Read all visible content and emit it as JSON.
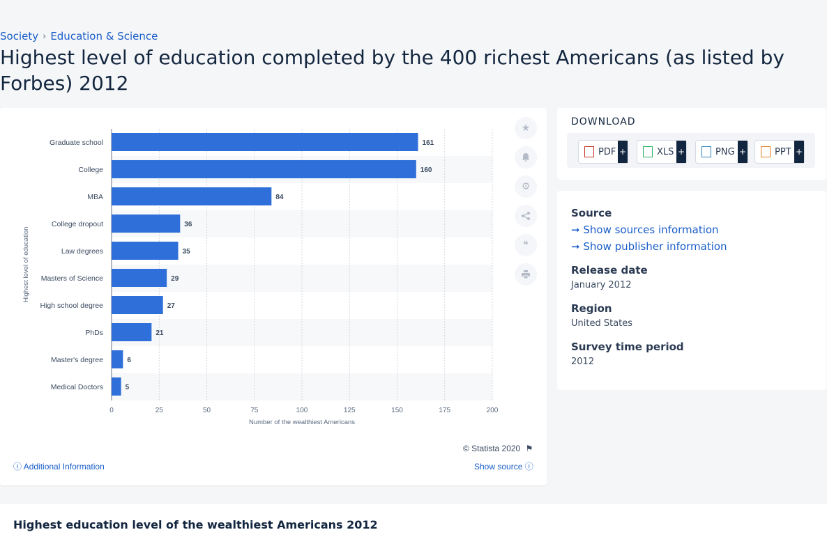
{
  "breadcrumb": {
    "item1": "Society",
    "sep": "›",
    "item2": "Education & Science"
  },
  "page_title": "Highest level of education completed by the 400 richest Americans (as listed by Forbes) 2012",
  "chart_data": {
    "type": "bar",
    "orientation": "horizontal",
    "categories": [
      "Graduate school",
      "College",
      "MBA",
      "College dropout",
      "Law degrees",
      "Masters of Science",
      "High school degree",
      "PhDs",
      "Master's degree",
      "Medical Doctors"
    ],
    "values": [
      161,
      160,
      84,
      36,
      35,
      29,
      27,
      21,
      6,
      5
    ],
    "xlabel": "Number of the wealthiest Americans",
    "ylabel": "Highest level of education",
    "xlim": [
      0,
      200
    ],
    "xticks": [
      0,
      25,
      50,
      75,
      100,
      125,
      150,
      175,
      200
    ],
    "bar_color": "#2e6fd9",
    "grid": true
  },
  "copyright": "© Statista 2020",
  "additional_info": "Additional Information",
  "show_source": "Show source",
  "download": {
    "title": "DOWNLOAD",
    "pdf": "PDF",
    "xls": "XLS",
    "png": "PNG",
    "ppt": "PPT",
    "plus": "+"
  },
  "meta": {
    "source_h": "Source",
    "show_sources": "Show sources information",
    "show_publisher": "Show publisher information",
    "release_h": "Release date",
    "release_v": "January 2012",
    "region_h": "Region",
    "region_v": "United States",
    "survey_h": "Survey time period",
    "survey_v": "2012"
  },
  "bottom_title": "Highest education level of the wealthiest Americans 2012",
  "colors": {
    "accent": "#1a5ec9",
    "navy": "#13263f"
  }
}
